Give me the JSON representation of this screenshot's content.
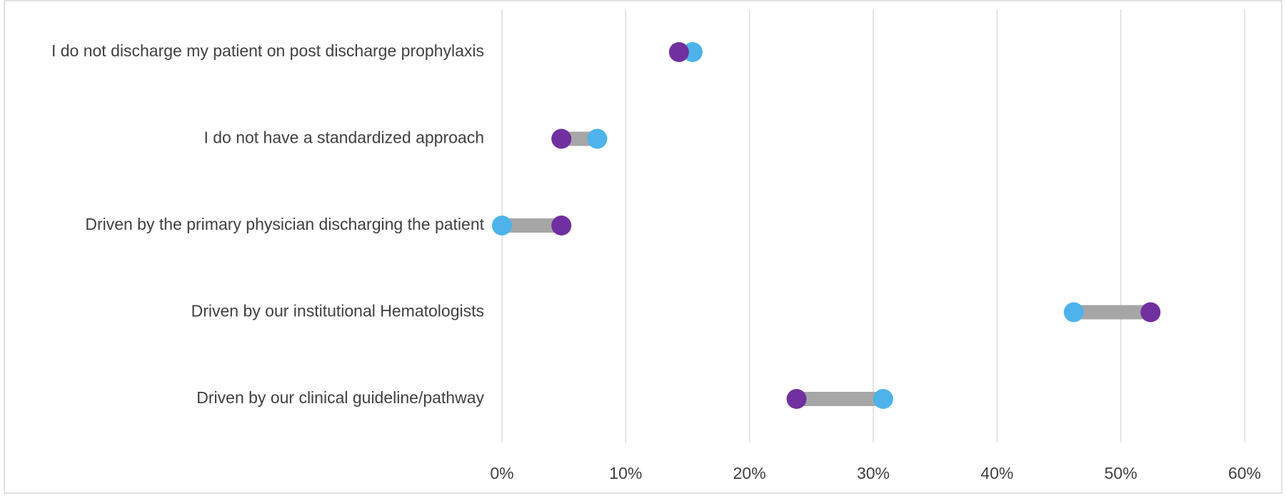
{
  "chart_data": {
    "type": "dumbbell",
    "title": "",
    "xlabel": "",
    "ylabel": "",
    "xlim": [
      0,
      0.6
    ],
    "x_ticks": [
      0,
      0.1,
      0.2,
      0.3,
      0.4,
      0.5,
      0.6
    ],
    "x_tick_labels": [
      "0%",
      "10%",
      "20%",
      "30%",
      "40%",
      "50%",
      "60%"
    ],
    "grid": true,
    "legend": "none",
    "categories": [
      "I do not discharge my patient on post discharge prophylaxis",
      "I do not have a standardized approach",
      "Driven by the primary physician discharging the patient",
      "Driven by our institutional Hematologists",
      "Driven by our clinical guideline/pathway"
    ],
    "series": [
      {
        "color": "#7030a0",
        "values": [
          0.143,
          0.048,
          0.048,
          0.524,
          0.238
        ]
      },
      {
        "color": "#4db3ea",
        "values": [
          0.154,
          0.077,
          0.0,
          0.462,
          0.308
        ]
      }
    ],
    "connector_color": "#a6a6a6",
    "draw_order": [
      1,
      0,
      1,
      1,
      0
    ]
  }
}
